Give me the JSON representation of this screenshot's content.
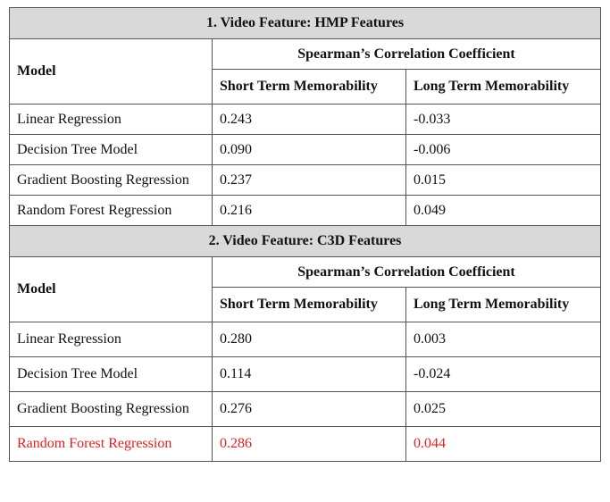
{
  "highlight_color": "#e02020",
  "sections": [
    {
      "title": "1.  Video Feature: HMP Features",
      "group_header": "Spearman’s Correlation Coefficient",
      "columns": [
        "Model",
        "Short Term Memorability",
        "Long Term Memorability"
      ],
      "rows": [
        {
          "model": "Linear Regression",
          "short": "0.243",
          "long": "-0.033"
        },
        {
          "model": "Decision Tree Model",
          "short": "0.090",
          "long": "-0.006"
        },
        {
          "model": "Gradient Boosting Regression",
          "short": "0.237",
          "long": "0.015"
        },
        {
          "model": "Random Forest Regression",
          "short": "0.216",
          "long": "0.049"
        }
      ]
    },
    {
      "title": "2.  Video Feature: C3D Features",
      "group_header": "Spearman’s Correlation Coefficient",
      "columns": [
        "Model",
        "Short Term Memorability",
        "Long Term Memorability"
      ],
      "rows": [
        {
          "model": "Linear Regression",
          "short": "0.280",
          "long": "0.003"
        },
        {
          "model": "Decision Tree Model",
          "short": "0.114",
          "long": "-0.024"
        },
        {
          "model": "Gradient Boosting Regression",
          "short": "0.276",
          "long": "0.025"
        },
        {
          "model": "Random Forest Regression",
          "short": "0.286",
          "long": "0.044",
          "highlighted": true
        }
      ]
    }
  ]
}
